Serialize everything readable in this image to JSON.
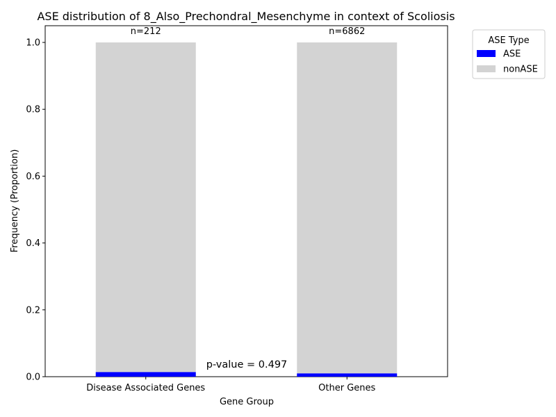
{
  "chart_data": {
    "type": "bar",
    "stacked": true,
    "title": "ASE distribution of 8_Also_Prechondral_Mesenchyme in context of Scoliosis",
    "xlabel": "Gene Group",
    "ylabel": "Frequency (Proportion)",
    "categories": [
      "Disease Associated Genes",
      "Other Genes"
    ],
    "counts": [
      "n=212",
      "n=6862"
    ],
    "series": [
      {
        "name": "ASE",
        "color": "#0000ff",
        "values": [
          0.014,
          0.01
        ]
      },
      {
        "name": "nonASE",
        "color": "#d3d3d3",
        "values": [
          0.986,
          0.99
        ]
      }
    ],
    "ylim": [
      0,
      1.05
    ],
    "yticks": [
      "0.0",
      "0.2",
      "0.4",
      "0.6",
      "0.8",
      "1.0"
    ],
    "legend_title": "ASE Type",
    "legend_position": "outside-top-right",
    "annotation": "p-value = 0.497",
    "grid": false
  }
}
